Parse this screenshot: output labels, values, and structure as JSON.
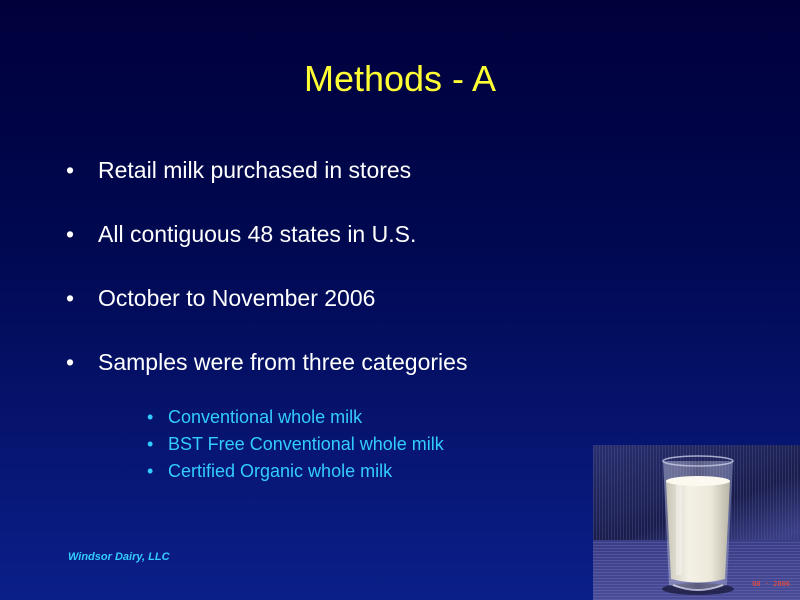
{
  "slide": {
    "title": "Methods - A",
    "bullets": [
      "Retail milk purchased in stores",
      "All contiguous 48 states in U.S.",
      "October to November 2006",
      "Samples were from three categories"
    ],
    "sub_bullets": [
      "Conventional whole milk",
      "BST Free Conventional whole milk",
      "Certified Organic whole milk"
    ],
    "bullet_glyph": "•",
    "footer": "Windsor Dairy, LLC"
  },
  "image": {
    "subject": "glass-of-milk",
    "stamp": "08 · 2006"
  },
  "colors": {
    "title": "#ffff33",
    "bullet_text": "#ffffff",
    "sub_bullet_text": "#33ccff",
    "background_top": "#00003b",
    "background_bottom": "#0b1f8a"
  }
}
